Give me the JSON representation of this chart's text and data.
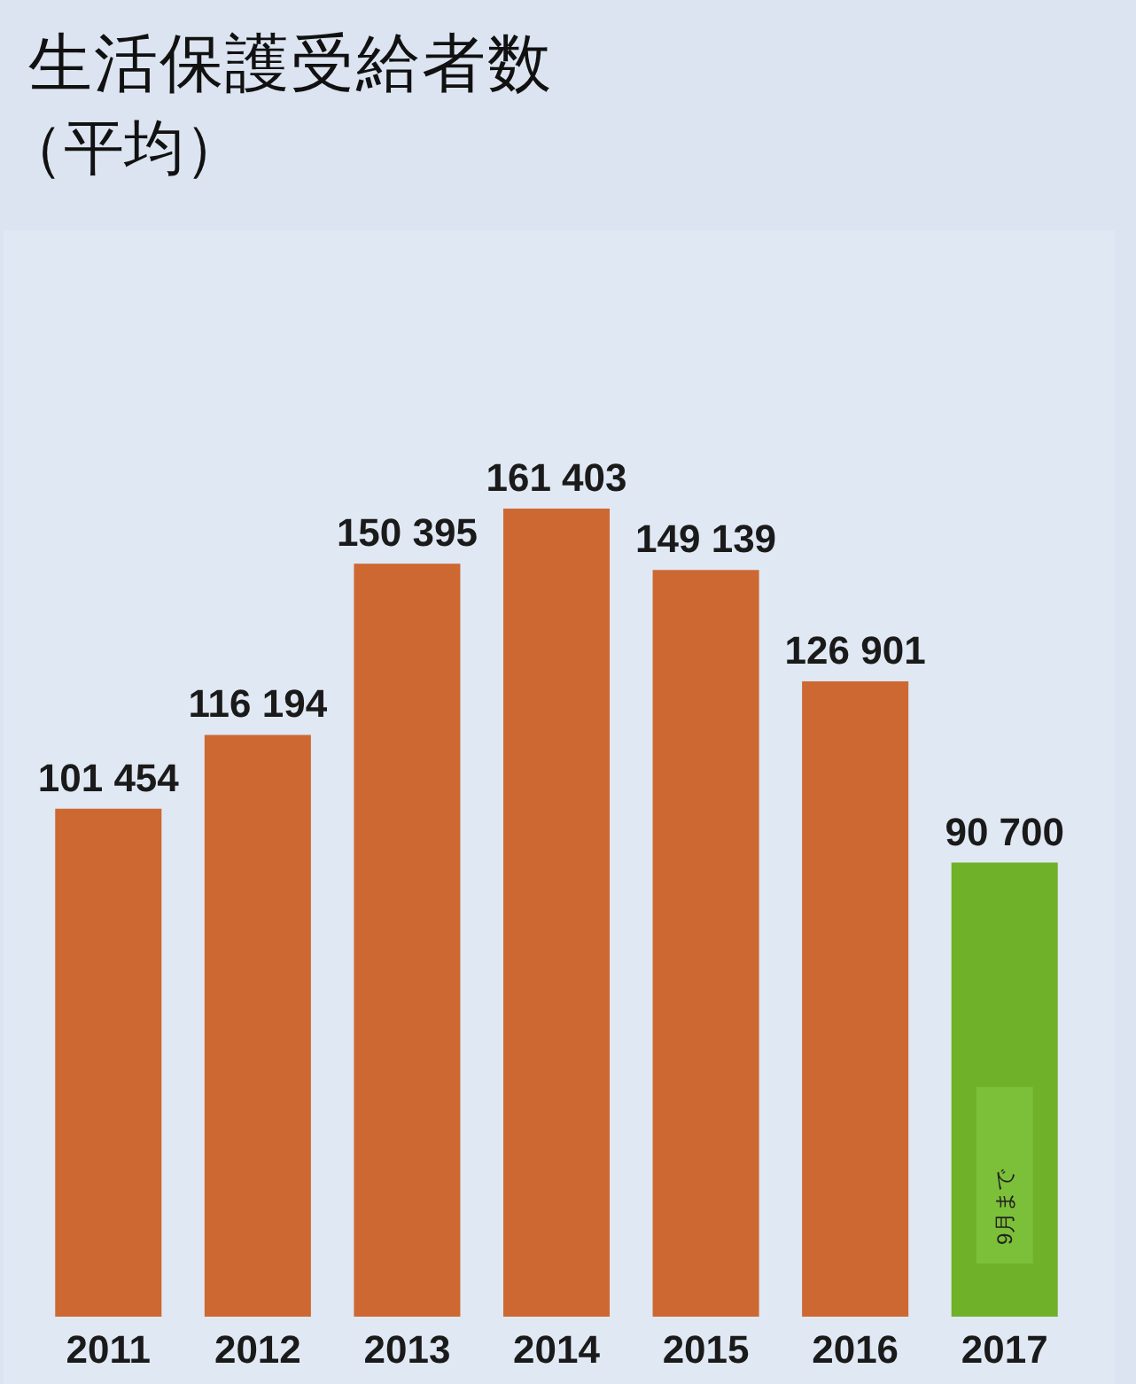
{
  "chart_data": {
    "type": "bar",
    "title": "生活保護受給者数",
    "subtitle": "（平均）",
    "categories": [
      "2011",
      "2012",
      "2013",
      "2014",
      "2015",
      "2016",
      "2017"
    ],
    "values": [
      101454,
      116194,
      150395,
      161403,
      149139,
      126901,
      90700
    ],
    "colors": [
      "#cd6832",
      "#cd6832",
      "#cd6832",
      "#cd6832",
      "#cd6832",
      "#cd6832",
      "#70b12a"
    ],
    "value_labels": [
      "101 454",
      "116 194",
      "150 395",
      "161 403",
      "149 139",
      "126 901",
      "90 700"
    ],
    "annotations": [
      "9月まで"
    ]
  }
}
